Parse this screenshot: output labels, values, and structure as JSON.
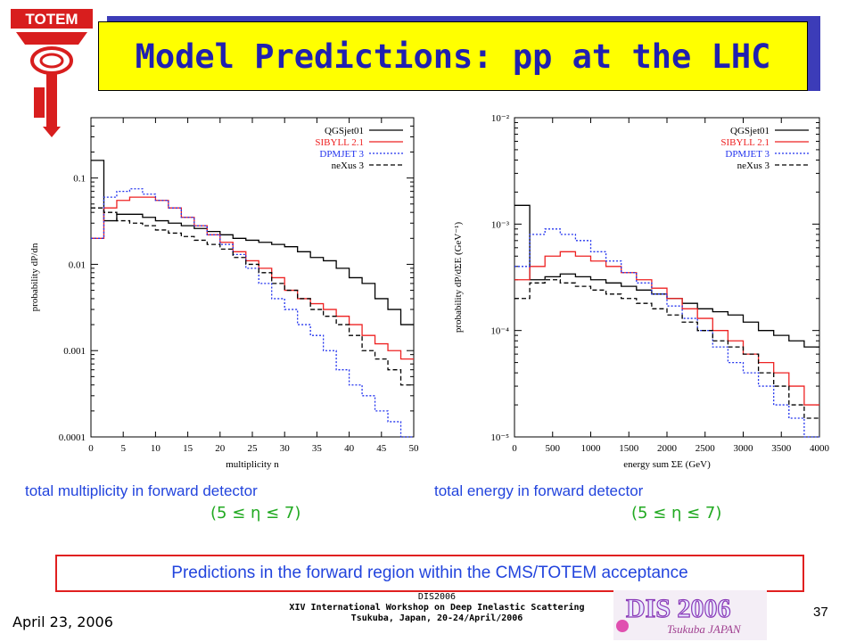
{
  "slide": {
    "title": "Model Predictions: pp at the LHC",
    "logo_text": "TOTEM",
    "bottom_note": "Predictions in the forward region within the CMS/TOTEM acceptance",
    "footer": {
      "date": "April 23, 2006",
      "conf_line1": "DIS2006",
      "conf_line2": "XIV International Workshop on Deep Inelastic Scattering",
      "conf_line3": "Tsukuba, Japan, 20-24/April/2006",
      "page_number": "37",
      "dis_logo_text": "DIS 2006",
      "dis_logo_sub": "Tsukuba JAPAN"
    },
    "colors": {
      "title_bg": "#ffff00",
      "title_text": "#2020b0",
      "caption": "#2244dd",
      "eta": "#22aa22",
      "box_border": "#e02020"
    }
  },
  "chart_data": [
    {
      "type": "line",
      "caption": "total multiplicity in forward detector",
      "eta_range": "(5 ≤ η ≤ 7)",
      "xlabel": "multiplicity n",
      "ylabel": "probability dP/dn",
      "xlim": [
        0,
        50
      ],
      "ylim": [
        0.0001,
        0.5
      ],
      "yscale": "log",
      "x_ticks": [
        0,
        5,
        10,
        15,
        20,
        25,
        30,
        35,
        40,
        45,
        50
      ],
      "y_ticks": [
        0.1,
        0.01,
        0.001,
        0.0001
      ],
      "y_tick_labels": [
        "0.1",
        "0.01",
        "0.001",
        "0.0001"
      ],
      "legend_position": "top-right",
      "x": [
        0,
        2,
        4,
        6,
        8,
        10,
        12,
        14,
        16,
        18,
        20,
        22,
        24,
        26,
        28,
        30,
        32,
        34,
        36,
        38,
        40,
        42,
        44,
        46,
        48
      ],
      "series": [
        {
          "name": "QGSjet01",
          "color": "#000000",
          "dash": "solid",
          "values": [
            0.16,
            0.032,
            0.038,
            0.038,
            0.035,
            0.032,
            0.03,
            0.028,
            0.026,
            0.024,
            0.022,
            0.02,
            0.019,
            0.018,
            0.017,
            0.016,
            0.014,
            0.012,
            0.011,
            0.009,
            0.007,
            0.006,
            0.004,
            0.003,
            0.002
          ]
        },
        {
          "name": "SIBYLL 2.1",
          "color": "#ee2222",
          "dash": "solid",
          "values": [
            0.02,
            0.045,
            0.055,
            0.06,
            0.06,
            0.055,
            0.045,
            0.035,
            0.028,
            0.022,
            0.018,
            0.014,
            0.011,
            0.009,
            0.007,
            0.005,
            0.004,
            0.0035,
            0.003,
            0.0025,
            0.002,
            0.0015,
            0.0012,
            0.001,
            0.0008
          ]
        },
        {
          "name": "DPMJET 3",
          "color": "#2233ee",
          "dash": "dotted",
          "values": [
            0.02,
            0.06,
            0.07,
            0.075,
            0.065,
            0.055,
            0.045,
            0.035,
            0.028,
            0.022,
            0.017,
            0.013,
            0.009,
            0.006,
            0.004,
            0.003,
            0.002,
            0.0015,
            0.001,
            0.0006,
            0.0004,
            0.0003,
            0.0002,
            0.00015,
            0.0001
          ]
        },
        {
          "name": "neXus 3",
          "color": "#000000",
          "dash": "dashed",
          "values": [
            0.045,
            0.04,
            0.032,
            0.03,
            0.028,
            0.025,
            0.023,
            0.021,
            0.019,
            0.017,
            0.015,
            0.012,
            0.01,
            0.008,
            0.006,
            0.005,
            0.004,
            0.003,
            0.0025,
            0.002,
            0.0015,
            0.001,
            0.0008,
            0.0006,
            0.0004
          ]
        }
      ]
    },
    {
      "type": "line",
      "caption": "total energy in forward detector",
      "eta_range": "(5 ≤ η ≤ 7)",
      "xlabel": "energy sum ΣE   (GeV)",
      "ylabel": "probability dP/dΣE   (GeV⁻¹)",
      "xlim": [
        0,
        4000
      ],
      "ylim": [
        1e-05,
        0.01
      ],
      "yscale": "log",
      "x_ticks": [
        0,
        500,
        1000,
        1500,
        2000,
        2500,
        3000,
        3500,
        4000
      ],
      "y_ticks": [
        0.01,
        0.001,
        0.0001,
        1e-05
      ],
      "y_tick_labels": [
        "10⁻²",
        "10⁻³",
        "10⁻⁴",
        "10⁻⁵"
      ],
      "legend_position": "top-right",
      "x": [
        0,
        200,
        400,
        600,
        800,
        1000,
        1200,
        1400,
        1600,
        1800,
        2000,
        2200,
        2400,
        2600,
        2800,
        3000,
        3200,
        3400,
        3600,
        3800
      ],
      "series": [
        {
          "name": "QGSjet01",
          "color": "#000000",
          "dash": "solid",
          "values": [
            0.0015,
            0.0003,
            0.00032,
            0.00034,
            0.00032,
            0.0003,
            0.00028,
            0.00026,
            0.00024,
            0.00022,
            0.0002,
            0.00018,
            0.00016,
            0.00015,
            0.00014,
            0.00012,
            0.0001,
            9e-05,
            8e-05,
            7e-05
          ]
        },
        {
          "name": "SIBYLL 2.1",
          "color": "#ee2222",
          "dash": "solid",
          "values": [
            0.0003,
            0.0004,
            0.0005,
            0.00055,
            0.0005,
            0.00045,
            0.0004,
            0.00035,
            0.0003,
            0.00025,
            0.0002,
            0.00016,
            0.00013,
            0.0001,
            8e-05,
            6e-05,
            5e-05,
            4e-05,
            3e-05,
            2e-05
          ]
        },
        {
          "name": "DPMJET 3",
          "color": "#2233ee",
          "dash": "dotted",
          "values": [
            0.0004,
            0.0008,
            0.0009,
            0.0008,
            0.0007,
            0.00055,
            0.00045,
            0.00035,
            0.00028,
            0.00022,
            0.00017,
            0.00013,
            0.0001,
            7e-05,
            5e-05,
            4e-05,
            3e-05,
            2e-05,
            1.5e-05,
            1e-05
          ]
        },
        {
          "name": "neXus 3",
          "color": "#000000",
          "dash": "dashed",
          "values": [
            0.0002,
            0.00028,
            0.0003,
            0.00028,
            0.00026,
            0.00024,
            0.00022,
            0.0002,
            0.00018,
            0.00016,
            0.00014,
            0.00012,
            0.0001,
            8e-05,
            7e-05,
            6e-05,
            4e-05,
            3e-05,
            2e-05,
            1.5e-05
          ]
        }
      ]
    }
  ]
}
